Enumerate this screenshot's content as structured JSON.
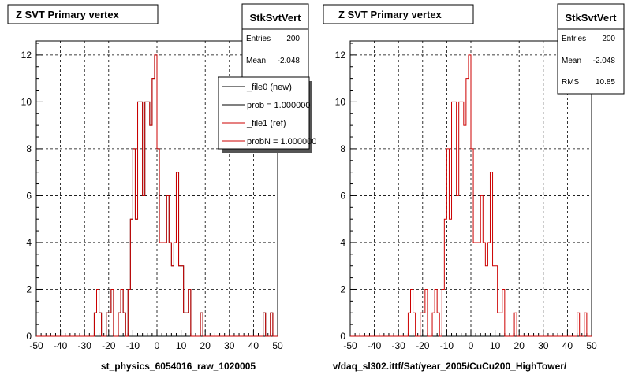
{
  "chart_data": [
    {
      "type": "histogram",
      "title": "Z SVT Primary vertex",
      "xlabel": "st_physics_6054016_raw_1020005",
      "xlim": [
        -50,
        50
      ],
      "ylim": [
        0,
        12.6
      ],
      "xticks": [
        -50,
        -40,
        -30,
        -20,
        -10,
        0,
        10,
        20,
        30,
        40,
        50
      ],
      "yticks": [
        0,
        2,
        4,
        6,
        8,
        10,
        12
      ],
      "grid": true,
      "bins": {
        "start": -50,
        "width": 1
      },
      "series": [
        {
          "name": "_file0 (new)",
          "color": "#000000",
          "values": "same as ref"
        },
        {
          "name": "_file1 (ref)",
          "color": "#cc0000",
          "values": [
            0,
            0,
            0,
            0,
            0,
            0,
            0,
            0,
            0,
            0,
            0,
            0,
            0,
            0,
            0,
            0,
            0,
            0,
            0,
            0,
            0,
            0,
            0,
            0,
            1,
            2,
            1,
            0,
            0,
            1,
            1,
            2,
            0,
            0,
            1,
            2,
            1,
            0,
            2,
            5,
            8,
            5,
            10,
            10,
            6,
            10,
            10,
            9,
            11,
            12,
            8,
            4,
            4,
            4,
            6,
            4,
            3,
            4,
            7,
            3,
            3,
            1,
            1,
            2,
            0,
            0,
            0,
            0,
            1,
            0,
            0,
            0,
            0,
            0,
            0,
            0,
            0,
            0,
            0,
            0,
            0,
            0,
            0,
            0,
            0,
            0,
            0,
            0,
            0,
            0,
            0,
            0,
            0,
            0,
            1,
            0,
            0,
            1,
            0,
            0
          ]
        }
      ],
      "stats": {
        "name": "StkSvtVert",
        "entries_label": "Entries",
        "entries": "200",
        "mean_label": "Mean",
        "mean": "-2.048"
      },
      "legend": {
        "placement": "top-right",
        "entries": [
          {
            "label": "_file0 (new)",
            "color": "#000000"
          },
          {
            "label": "prob = 1.000000",
            "color": "#000000"
          },
          {
            "label": "_file1 (ref)",
            "color": "#cc0000"
          },
          {
            "label": "probN = 1.000000",
            "color": "#cc0000"
          }
        ]
      }
    },
    {
      "type": "histogram",
      "title": "Z SVT Primary vertex",
      "xlabel": "v/daq_sl302.ittf/Sat/year_2005/CuCu200_HighTower/",
      "xlim": [
        -50,
        50
      ],
      "ylim": [
        0,
        12.6
      ],
      "xticks": [
        -50,
        -40,
        -30,
        -20,
        -10,
        0,
        10,
        20,
        30,
        40,
        50
      ],
      "yticks": [
        0,
        2,
        4,
        6,
        8,
        10,
        12
      ],
      "grid": true,
      "bins": {
        "start": -50,
        "width": 1
      },
      "series": [
        {
          "name": "_file1 (ref)",
          "color": "#cc0000",
          "values": [
            0,
            0,
            0,
            0,
            0,
            0,
            0,
            0,
            0,
            0,
            0,
            0,
            0,
            0,
            0,
            0,
            0,
            0,
            0,
            0,
            0,
            0,
            0,
            0,
            1,
            2,
            1,
            0,
            0,
            1,
            1,
            2,
            0,
            0,
            1,
            2,
            1,
            0,
            2,
            5,
            8,
            5,
            10,
            10,
            6,
            10,
            10,
            9,
            11,
            12,
            8,
            4,
            4,
            4,
            6,
            4,
            3,
            4,
            7,
            3,
            3,
            1,
            1,
            2,
            0,
            0,
            0,
            0,
            1,
            0,
            0,
            0,
            0,
            0,
            0,
            0,
            0,
            0,
            0,
            0,
            0,
            0,
            0,
            0,
            0,
            0,
            0,
            0,
            0,
            0,
            0,
            0,
            0,
            0,
            1,
            0,
            0,
            1,
            0,
            0
          ]
        }
      ],
      "stats": {
        "name": "StkSvtVert",
        "entries_label": "Entries",
        "entries": "200",
        "mean_label": "Mean",
        "mean": "-2.048",
        "rms_label": "RMS",
        "rms": "10.85"
      }
    }
  ]
}
